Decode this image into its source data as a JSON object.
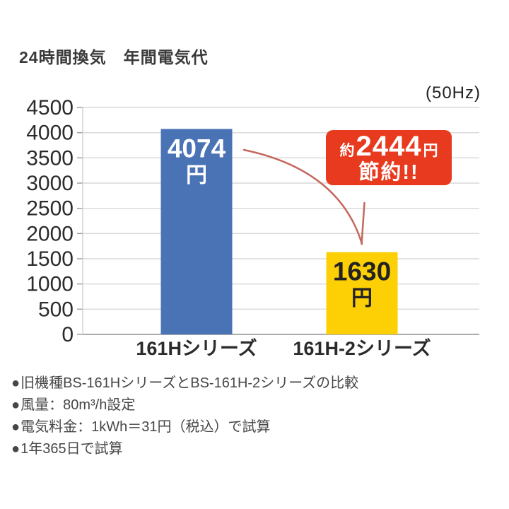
{
  "header": {
    "title": "24時間換気　年間電気代",
    "frequency_label": "(50Hz)"
  },
  "chart_data": {
    "type": "bar",
    "title": "24時間換気　年間電気代",
    "subtitle": "(50Hz)",
    "categories": [
      "161Hシリーズ",
      "161H-2シリーズ"
    ],
    "values": [
      4074,
      1630
    ],
    "bar_value_labels": [
      [
        "4074",
        "円"
      ],
      [
        "1630",
        "円"
      ]
    ],
    "bar_colors": [
      "#4a73b6",
      "#fcd004"
    ],
    "bar_label_colors": [
      "#ffffff",
      "#222222"
    ],
    "xlabel": "",
    "ylabel": "",
    "ylim": [
      0,
      4500
    ],
    "yticks": [
      0,
      500,
      1000,
      1500,
      2000,
      2500,
      3000,
      3500,
      4000,
      4500
    ],
    "grid": true,
    "legend": false,
    "annotation": {
      "prefix": "約",
      "amount": "2444",
      "unit": "円",
      "line2": "節約!!",
      "meaning": "saves about 2444 yen",
      "color": "#e83a1e"
    }
  },
  "badge": {
    "prefix": "約",
    "amount": "2444",
    "unit": "円",
    "line2": "節約!!",
    "background": "#e83a1e"
  },
  "notes": {
    "bullet": "●",
    "items": [
      "旧機種BS-161HシリーズとBS-161H-2シリーズの比較",
      "風量：80m³/h設定",
      "電気料金：1kWh＝31円（税込）で試算",
      "1年365日で試算"
    ]
  }
}
